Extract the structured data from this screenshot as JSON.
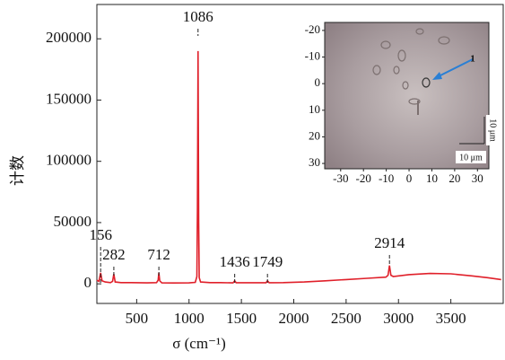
{
  "chart_data": [
    {
      "type": "line",
      "x_label": "σ  (cm⁻¹)",
      "y_label": "计数",
      "color": "#e0202a",
      "x": [
        120,
        140,
        156,
        170,
        200,
        250,
        270,
        282,
        295,
        350,
        450,
        600,
        690,
        705,
        712,
        720,
        740,
        850,
        1000,
        1060,
        1075,
        1080,
        1086,
        1092,
        1097,
        1110,
        1200,
        1300,
        1420,
        1436,
        1450,
        1600,
        1735,
        1749,
        1765,
        1900,
        2100,
        2300,
        2500,
        2700,
        2880,
        2900,
        2914,
        2928,
        2950,
        3100,
        3300,
        3500,
        3700,
        3850,
        3980
      ],
      "values": [
        3000,
        2000,
        9000,
        2500,
        1500,
        1000,
        2000,
        8000,
        1500,
        1000,
        1000,
        800,
        1000,
        3000,
        9000,
        2500,
        800,
        700,
        800,
        1200,
        6000,
        60000,
        190000,
        50000,
        5000,
        1500,
        1000,
        1000,
        800,
        2500,
        900,
        900,
        900,
        2500,
        900,
        1000,
        1500,
        2500,
        3500,
        4500,
        5500,
        7000,
        15000,
        7000,
        6000,
        7500,
        8500,
        8200,
        6500,
        5000,
        3500
      ],
      "xlim": [
        120,
        4000
      ],
      "ylim": [
        -16000,
        228000
      ],
      "xticks": [
        500,
        1000,
        1500,
        2000,
        2500,
        3000,
        3500
      ],
      "yticks": [
        0,
        50000,
        100000,
        150000,
        200000
      ],
      "peaks": [
        {
          "label": "156",
          "x": 156
        },
        {
          "label": "282",
          "x": 282
        },
        {
          "label": "712",
          "x": 712
        },
        {
          "label": "1086",
          "x": 1086
        },
        {
          "label": "1436",
          "x": 1436
        },
        {
          "label": "1749",
          "x": 1749
        },
        {
          "label": "2914",
          "x": 2914
        }
      ]
    },
    {
      "type": "image",
      "xlim": [
        -37,
        35
      ],
      "ylim": [
        -23,
        32
      ],
      "y_inverted": true,
      "xticks": [
        -30,
        -20,
        -10,
        0,
        10,
        20,
        30
      ],
      "yticks": [
        -20,
        -10,
        0,
        10,
        20,
        30
      ],
      "marker_label": "1",
      "scale_label_x": "10 μm",
      "scale_label_y": "10 μm"
    }
  ]
}
